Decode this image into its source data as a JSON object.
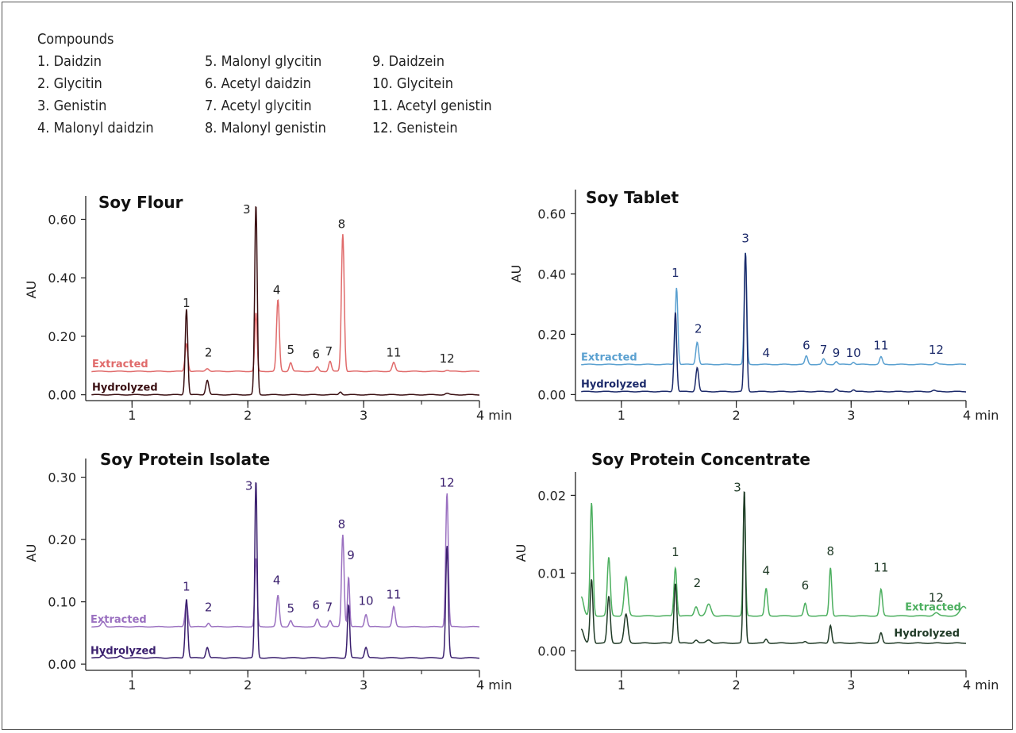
{
  "legend": {
    "heading": "Compounds",
    "columns": [
      [
        "1. Daidzin",
        "2. Glycitin",
        "3. Genistin",
        "4. Malonyl daidzin"
      ],
      [
        "5. Malonyl glycitin",
        "6. Acetyl daidzin",
        "7. Acetyl glycitin",
        "8. Malonyl genistin"
      ],
      [
        "9. Daidzein",
        "10. Glycitein",
        "11. Acetyl genistin",
        "12. Genistein"
      ]
    ]
  },
  "chart_data": [
    {
      "type": "line",
      "title": "Soy Flour",
      "ylabel": "AU",
      "xlim": [
        0.6,
        4.0
      ],
      "ylim": [
        -0.02,
        0.68
      ],
      "xticks": [
        1,
        2,
        3,
        4
      ],
      "xtick_labels": [
        "1",
        "2",
        "3",
        "4 min"
      ],
      "yticks": [
        0.0,
        0.2,
        0.4,
        0.6
      ],
      "ytick_labels": [
        "0.00",
        "0.20",
        "0.40",
        "0.60"
      ],
      "series": [
        {
          "name": "Extracted",
          "color": "#e06a6a",
          "baseline": 0.08,
          "peaks": [
            [
              1.47,
              0.095,
              0.012
            ],
            [
              1.65,
              0.01,
              0.015
            ],
            [
              2.07,
              0.2,
              0.01
            ],
            [
              2.26,
              0.245,
              0.012
            ],
            [
              2.37,
              0.03,
              0.012
            ],
            [
              2.6,
              0.015,
              0.012
            ],
            [
              2.71,
              0.035,
              0.012
            ],
            [
              2.82,
              0.47,
              0.012
            ],
            [
              3.26,
              0.03,
              0.013
            ],
            [
              3.72,
              0.004,
              0.015
            ]
          ]
        },
        {
          "name": "Hydrolyzed",
          "color": "#3a0f12",
          "baseline": 0.0,
          "peaks": [
            [
              1.47,
              0.295,
              0.011
            ],
            [
              1.65,
              0.05,
              0.013
            ],
            [
              2.07,
              0.65,
              0.011
            ],
            [
              2.8,
              0.01,
              0.012
            ],
            [
              3.72,
              0.005,
              0.015
            ]
          ]
        }
      ],
      "peak_labels": [
        {
          "text": "1",
          "x": 1.47,
          "y": 0.3
        },
        {
          "text": "2",
          "x": 1.66,
          "y": 0.13
        },
        {
          "text": "3",
          "x": 1.99,
          "y": 0.62
        },
        {
          "text": "4",
          "x": 2.25,
          "y": 0.345
        },
        {
          "text": "5",
          "x": 2.37,
          "y": 0.14
        },
        {
          "text": "6",
          "x": 2.59,
          "y": 0.125
        },
        {
          "text": "7",
          "x": 2.7,
          "y": 0.135
        },
        {
          "text": "8",
          "x": 2.81,
          "y": 0.57
        },
        {
          "text": "11",
          "x": 3.26,
          "y": 0.13
        },
        {
          "text": "12",
          "x": 3.72,
          "y": 0.11
        }
      ]
    },
    {
      "type": "line",
      "title": "Soy Tablet",
      "ylabel": "AU",
      "xlim": [
        0.6,
        4.0
      ],
      "ylim": [
        -0.02,
        0.68
      ],
      "xticks": [
        1,
        2,
        3,
        4
      ],
      "xtick_labels": [
        "1",
        "2",
        "3",
        "4 min"
      ],
      "yticks": [
        0.0,
        0.2,
        0.4,
        0.6
      ],
      "ytick_labels": [
        "0.00",
        "0.20",
        "0.40",
        "0.60"
      ],
      "series": [
        {
          "name": "Extracted",
          "color": "#5aa0d0",
          "baseline": 0.1,
          "peaks": [
            [
              1.48,
              0.255,
              0.011
            ],
            [
              1.66,
              0.075,
              0.012
            ],
            [
              2.08,
              0.37,
              0.011
            ],
            [
              2.61,
              0.028,
              0.012
            ],
            [
              2.76,
              0.018,
              0.012
            ],
            [
              2.87,
              0.01,
              0.012
            ],
            [
              3.02,
              0.008,
              0.012
            ],
            [
              3.26,
              0.025,
              0.012
            ],
            [
              3.74,
              0.006,
              0.014
            ]
          ]
        },
        {
          "name": "Hydrolyzed",
          "color": "#1c2a6a",
          "baseline": 0.01,
          "peaks": [
            [
              1.47,
              0.265,
              0.011
            ],
            [
              1.66,
              0.08,
              0.012
            ],
            [
              2.08,
              0.46,
              0.011
            ],
            [
              2.87,
              0.008,
              0.012
            ],
            [
              3.02,
              0.006,
              0.012
            ],
            [
              3.72,
              0.004,
              0.014
            ]
          ]
        }
      ],
      "peak_labels": [
        {
          "text": "1",
          "x": 1.47,
          "y": 0.39
        },
        {
          "text": "2",
          "x": 1.67,
          "y": 0.205
        },
        {
          "text": "3",
          "x": 2.08,
          "y": 0.505
        },
        {
          "text": "4",
          "x": 2.26,
          "y": 0.125
        },
        {
          "text": "6",
          "x": 2.61,
          "y": 0.15
        },
        {
          "text": "7",
          "x": 2.76,
          "y": 0.135
        },
        {
          "text": "9",
          "x": 2.87,
          "y": 0.125
        },
        {
          "text": "10",
          "x": 3.02,
          "y": 0.125
        },
        {
          "text": "11",
          "x": 3.26,
          "y": 0.15
        },
        {
          "text": "12",
          "x": 3.74,
          "y": 0.135
        }
      ]
    },
    {
      "type": "line",
      "title": "Soy Protein Isolate",
      "ylabel": "AU",
      "xlim": [
        0.6,
        4.0
      ],
      "ylim": [
        -0.01,
        0.33
      ],
      "xticks": [
        1,
        2,
        3,
        4
      ],
      "xtick_labels": [
        "1",
        "2",
        "3",
        "4 min"
      ],
      "yticks": [
        0.0,
        0.1,
        0.2,
        0.3
      ],
      "ytick_labels": [
        "0.00",
        "0.10",
        "0.20",
        "0.30"
      ],
      "series": [
        {
          "name": "Extracted",
          "color": "#9a70c0",
          "baseline": 0.06,
          "peaks": [
            [
              0.75,
              0.008,
              0.015
            ],
            [
              1.47,
              0.04,
              0.012
            ],
            [
              1.66,
              0.006,
              0.012
            ],
            [
              2.07,
              0.11,
              0.01
            ],
            [
              2.26,
              0.05,
              0.012
            ],
            [
              2.37,
              0.01,
              0.012
            ],
            [
              2.6,
              0.012,
              0.012
            ],
            [
              2.71,
              0.01,
              0.012
            ],
            [
              2.82,
              0.148,
              0.011
            ],
            [
              2.87,
              0.08,
              0.009
            ],
            [
              3.02,
              0.02,
              0.012
            ],
            [
              3.26,
              0.032,
              0.012
            ],
            [
              3.72,
              0.215,
              0.011
            ]
          ]
        },
        {
          "name": "Hydrolyzed",
          "color": "#3a1f6e",
          "baseline": 0.01,
          "peaks": [
            [
              0.75,
              0.005,
              0.015
            ],
            [
              0.9,
              0.003,
              0.015
            ],
            [
              1.47,
              0.095,
              0.011
            ],
            [
              1.65,
              0.017,
              0.012
            ],
            [
              2.07,
              0.285,
              0.01
            ],
            [
              2.87,
              0.085,
              0.01
            ],
            [
              3.02,
              0.017,
              0.012
            ],
            [
              3.72,
              0.18,
              0.011
            ]
          ]
        }
      ],
      "peak_labels": [
        {
          "text": "1",
          "x": 1.47,
          "y": 0.118
        },
        {
          "text": "2",
          "x": 1.66,
          "y": 0.085
        },
        {
          "text": "3",
          "x": 2.01,
          "y": 0.28
        },
        {
          "text": "4",
          "x": 2.25,
          "y": 0.128
        },
        {
          "text": "5",
          "x": 2.37,
          "y": 0.083
        },
        {
          "text": "6",
          "x": 2.59,
          "y": 0.088
        },
        {
          "text": "7",
          "x": 2.7,
          "y": 0.085
        },
        {
          "text": "8",
          "x": 2.81,
          "y": 0.218
        },
        {
          "text": "9",
          "x": 2.89,
          "y": 0.168
        },
        {
          "text": "10",
          "x": 3.02,
          "y": 0.095
        },
        {
          "text": "11",
          "x": 3.26,
          "y": 0.105
        },
        {
          "text": "12",
          "x": 3.72,
          "y": 0.285
        }
      ]
    },
    {
      "type": "line",
      "title": "Soy Protein Concentrate",
      "ylabel": "AU",
      "xlim": [
        0.6,
        4.0
      ],
      "ylim": [
        -0.0025,
        0.023
      ],
      "xticks": [
        1,
        2,
        3,
        4
      ],
      "xtick_labels": [
        "1",
        "2",
        "3",
        "4 min"
      ],
      "yticks": [
        0.0,
        0.01,
        0.02
      ],
      "ytick_labels": [
        "0.00",
        "0.01",
        "0.02"
      ],
      "series": [
        {
          "name": "Extracted",
          "color": "#4caf5f",
          "baseline": 0.0045,
          "peaks": [
            [
              0.65,
              0.0025,
              0.02
            ],
            [
              0.74,
              0.0145,
              0.012
            ],
            [
              0.89,
              0.0075,
              0.013
            ],
            [
              1.04,
              0.005,
              0.016
            ],
            [
              1.47,
              0.0062,
              0.012
            ],
            [
              1.65,
              0.0012,
              0.015
            ],
            [
              1.76,
              0.0015,
              0.02
            ],
            [
              2.07,
              0.0155,
              0.01
            ],
            [
              2.26,
              0.0035,
              0.012
            ],
            [
              2.6,
              0.0016,
              0.012
            ],
            [
              2.82,
              0.0062,
              0.011
            ],
            [
              3.26,
              0.0034,
              0.012
            ],
            [
              3.74,
              0.0004,
              0.02
            ],
            [
              3.98,
              0.0012,
              0.03
            ]
          ]
        },
        {
          "name": "Hydrolyzed",
          "color": "#1f3a26",
          "baseline": 0.001,
          "peaks": [
            [
              0.65,
              0.0018,
              0.02
            ],
            [
              0.74,
              0.0082,
              0.012
            ],
            [
              0.89,
              0.006,
              0.013
            ],
            [
              1.04,
              0.0037,
              0.016
            ],
            [
              1.47,
              0.0077,
              0.012
            ],
            [
              1.65,
              0.0004,
              0.015
            ],
            [
              1.76,
              0.0004,
              0.02
            ],
            [
              2.07,
              0.0197,
              0.01
            ],
            [
              2.26,
              0.0005,
              0.012
            ],
            [
              2.6,
              0.0002,
              0.012
            ],
            [
              2.82,
              0.0023,
              0.011
            ],
            [
              3.26,
              0.0013,
              0.012
            ]
          ]
        }
      ],
      "peak_labels": [
        {
          "text": "1",
          "x": 1.47,
          "y": 0.0122
        },
        {
          "text": "2",
          "x": 1.66,
          "y": 0.0082
        },
        {
          "text": "3",
          "x": 2.01,
          "y": 0.0205
        },
        {
          "text": "4",
          "x": 2.26,
          "y": 0.0098
        },
        {
          "text": "6",
          "x": 2.6,
          "y": 0.0079
        },
        {
          "text": "8",
          "x": 2.82,
          "y": 0.0123
        },
        {
          "text": "11",
          "x": 3.26,
          "y": 0.0102
        },
        {
          "text": "12",
          "x": 3.74,
          "y": 0.0063
        }
      ]
    }
  ]
}
